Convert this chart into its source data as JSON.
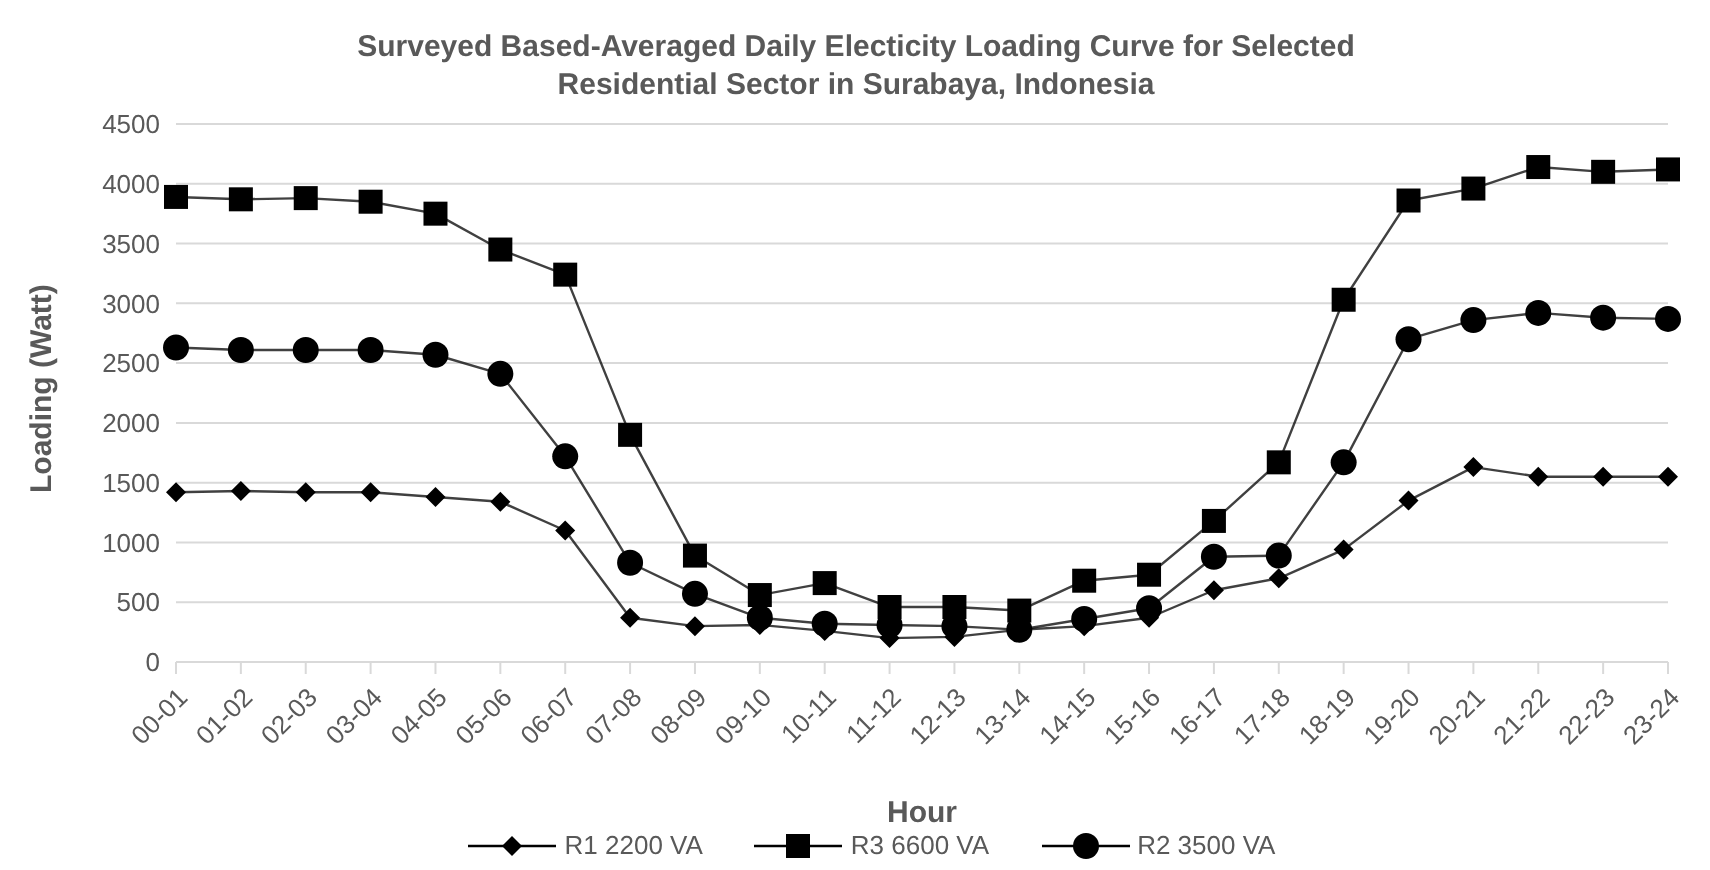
{
  "chart_data": {
    "type": "line",
    "title": "Surveyed Based-Averaged Daily Electicity Loading Curve for Selected Residential Sector in Surabaya, Indonesia",
    "xlabel": "Hour",
    "ylabel": "Loading (Watt)",
    "categories": [
      "00-01",
      "01-02",
      "02-03",
      "03-04",
      "04-05",
      "05-06",
      "06-07",
      "07-08",
      "08-09",
      "09-10",
      "10-11",
      "11-12",
      "12-13",
      "13-14",
      "14-15",
      "15-16",
      "16-17",
      "17-18",
      "18-19",
      "19-20",
      "20-21",
      "21-22",
      "22-23",
      "23-24"
    ],
    "series": [
      {
        "name": "R1 2200 VA",
        "color": "#000000",
        "marker": "diamond",
        "values": [
          1420,
          1430,
          1420,
          1420,
          1380,
          1340,
          1100,
          370,
          300,
          310,
          260,
          200,
          210,
          270,
          300,
          370,
          600,
          700,
          940,
          1350,
          1630,
          1550,
          1550,
          1550
        ]
      },
      {
        "name": "R3 6600 VA",
        "color": "#000000",
        "marker": "square",
        "values": [
          3890,
          3870,
          3880,
          3850,
          3750,
          3450,
          3240,
          1900,
          890,
          560,
          660,
          460,
          460,
          430,
          680,
          730,
          1180,
          1670,
          3030,
          3860,
          3960,
          4140,
          4100,
          4120
        ]
      },
      {
        "name": "R2 3500 VA",
        "color": "#000000",
        "marker": "circle",
        "values": [
          2630,
          2610,
          2610,
          2610,
          2570,
          2410,
          1720,
          830,
          570,
          370,
          320,
          310,
          300,
          270,
          360,
          450,
          880,
          890,
          1670,
          2700,
          2860,
          2920,
          2880,
          2870
        ]
      }
    ],
    "ylim": [
      0,
      4500
    ],
    "yticks": [
      0,
      500,
      1000,
      1500,
      2000,
      2500,
      3000,
      3500,
      4000,
      4500
    ],
    "grid": "y",
    "legend": "bottom",
    "line_style": "solid"
  }
}
